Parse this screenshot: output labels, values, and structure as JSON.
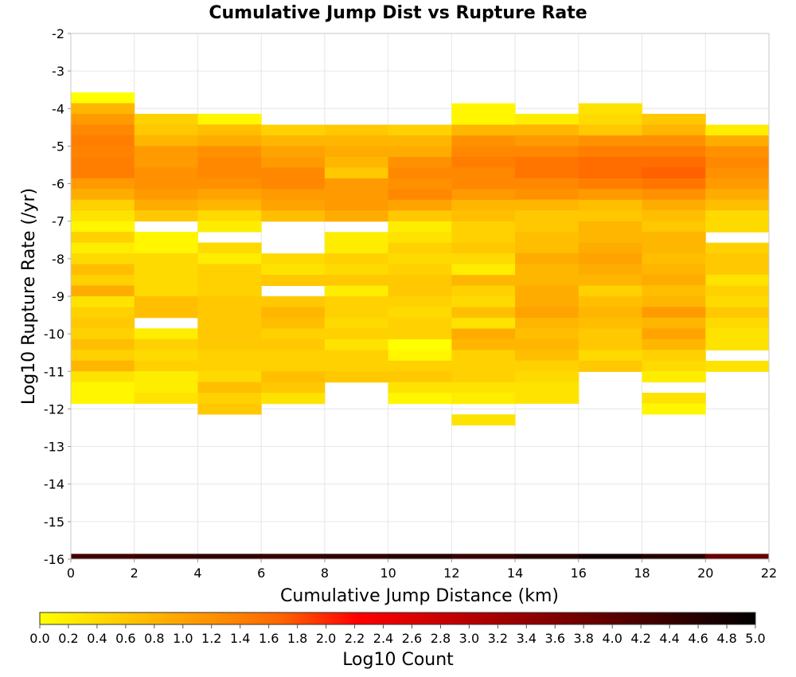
{
  "chart_data": {
    "type": "heatmap",
    "title": "Cumulative Jump Dist vs Rupture Rate",
    "xlabel": "Cumulative Jump Distance (km)",
    "ylabel": "Log10 Rupture Rate (/yr)",
    "xlim": [
      0,
      22
    ],
    "ylim": [
      -16,
      -2
    ],
    "x_ticks": [
      "0",
      "2",
      "4",
      "6",
      "8",
      "10",
      "12",
      "14",
      "16",
      "18",
      "20",
      "22"
    ],
    "y_ticks": [
      "-2",
      "-3",
      "-4",
      "-5",
      "-6",
      "-7",
      "-8",
      "-9",
      "-10",
      "-11",
      "-12",
      "-13",
      "-14",
      "-15",
      "-16"
    ],
    "grid": true,
    "x_bin_width": 2,
    "y_bin_height": 0.2857,
    "colorscale": {
      "label": "Log10 Count",
      "min": 0,
      "max": 5,
      "ticks": [
        "0.0",
        "0.2",
        "0.4",
        "0.6",
        "0.8",
        "1.0",
        "1.2",
        "1.4",
        "1.6",
        "1.8",
        "2.0",
        "2.2",
        "2.4",
        "2.6",
        "2.8",
        "3.0",
        "3.2",
        "3.4",
        "3.6",
        "3.8",
        "4.0",
        "4.2",
        "4.4",
        "4.6",
        "4.8",
        "5.0"
      ],
      "stops": [
        "#ffff00",
        "#ffcc00",
        "#ff9900",
        "#ff6600",
        "#ff0000",
        "#cc0000",
        "#990000",
        "#660000",
        "#330000",
        "#000000"
      ]
    },
    "columns": [
      {
        "x": 0,
        "y_top": -3.57,
        "values": [
          0.0,
          0.8,
          1.1,
          1.3,
          1.4,
          1.35,
          1.4,
          1.4,
          1.1,
          0.9,
          0.5,
          0.3,
          0.1,
          0.5,
          0.2,
          0.4,
          0.7,
          0.5,
          0.9,
          0.3,
          0.5,
          0.6,
          0.5,
          0.7,
          0.5,
          0.8,
          0.3,
          0.1,
          0.1
        ]
      },
      {
        "x": 2,
        "y_top": -4.14,
        "values": [
          0.5,
          0.6,
          0.8,
          1.1,
          1.1,
          1.2,
          1.2,
          1.1,
          0.9,
          0.6,
          null,
          0.1,
          0.1,
          0.4,
          0.4,
          0.4,
          0.4,
          0.7,
          0.7,
          null,
          0.2,
          0.5,
          0.4,
          0.5,
          0.2,
          0.2,
          0.3
        ]
      },
      {
        "x": 4,
        "y_top": -4.14,
        "values": [
          0.1,
          0.7,
          0.9,
          1.2,
          1.3,
          1.3,
          1.2,
          1.0,
          0.8,
          0.4,
          0.2,
          null,
          0.4,
          0.2,
          0.5,
          0.5,
          0.5,
          0.6,
          0.6,
          0.6,
          0.6,
          0.6,
          0.5,
          0.5,
          0.4,
          0.7,
          0.5,
          0.6
        ]
      },
      {
        "x": 6,
        "y_top": -4.43,
        "values": [
          0.5,
          0.8,
          1.0,
          1.1,
          1.3,
          1.3,
          1.1,
          1.0,
          0.7,
          null,
          null,
          null,
          0.4,
          0.3,
          0.6,
          null,
          0.6,
          0.8,
          0.7,
          0.5,
          0.6,
          0.5,
          0.5,
          0.7,
          0.6,
          0.3
        ]
      },
      {
        "x": 8,
        "y_top": -4.43,
        "values": [
          0.6,
          0.8,
          0.9,
          0.8,
          0.6,
          1.1,
          1.1,
          1.1,
          0.9,
          null,
          0.2,
          0.2,
          0.5,
          0.4,
          0.6,
          0.2,
          0.5,
          0.5,
          0.4,
          0.5,
          0.3,
          0.5,
          0.5,
          0.6
        ]
      },
      {
        "x": 10,
        "y_top": -4.43,
        "values": [
          0.5,
          0.8,
          0.9,
          1.2,
          1.3,
          1.2,
          1.3,
          1.0,
          0.6,
          0.2,
          0.3,
          0.5,
          0.4,
          0.5,
          0.6,
          0.6,
          0.5,
          0.4,
          0.5,
          0.5,
          0.0,
          0.1,
          0.5,
          0.6,
          0.3,
          0.1
        ]
      },
      {
        "x": 12,
        "y_top": -3.86,
        "values": [
          0.1,
          0.1,
          0.8,
          1.2,
          1.3,
          1.4,
          1.3,
          1.3,
          1.1,
          0.8,
          0.7,
          0.5,
          0.5,
          0.6,
          0.4,
          0.2,
          0.8,
          0.5,
          0.4,
          0.7,
          0.3,
          0.9,
          0.8,
          0.5,
          0.5,
          0.5,
          0.3,
          0.2,
          null,
          0.3
        ]
      },
      {
        "x": 14,
        "y_top": -4.14,
        "values": [
          0.2,
          0.8,
          1.1,
          1.3,
          1.5,
          1.5,
          1.3,
          1.2,
          0.8,
          0.6,
          0.6,
          0.7,
          0.7,
          0.9,
          0.8,
          0.8,
          0.9,
          0.9,
          1.0,
          0.8,
          0.7,
          0.8,
          0.7,
          0.5,
          0.4,
          0.3,
          0.3
        ]
      },
      {
        "x": 16,
        "y_top": -3.86,
        "values": [
          0.3,
          0.4,
          0.6,
          1.2,
          1.4,
          1.6,
          1.6,
          1.4,
          1.1,
          0.7,
          0.6,
          0.8,
          0.8,
          0.9,
          1.0,
          0.9,
          0.8,
          0.5,
          0.7,
          0.8,
          0.7,
          0.6,
          0.6,
          0.4,
          0.6
        ]
      },
      {
        "x": 18,
        "y_top": -4.14,
        "values": [
          0.6,
          0.8,
          1.2,
          1.4,
          1.6,
          1.7,
          1.5,
          1.2,
          0.9,
          0.7,
          0.6,
          0.8,
          0.8,
          0.7,
          0.8,
          0.9,
          0.7,
          0.8,
          1.1,
          0.8,
          1.0,
          0.8,
          0.5,
          0.4,
          0.2,
          null,
          0.3,
          0.1
        ]
      },
      {
        "x": 20,
        "y_top": -4.43,
        "values": [
          0.2,
          0.9,
          1.2,
          1.3,
          1.2,
          1.1,
          0.9,
          0.7,
          0.4,
          0.4,
          null,
          0.5,
          0.6,
          0.6,
          0.3,
          0.5,
          0.4,
          0.6,
          0.4,
          0.3,
          0.3,
          null,
          0.3
        ]
      }
    ],
    "bottom_row": {
      "y_top": -15.86,
      "y_bottom": -16.0,
      "values": [
        4.3,
        4.4,
        4.5,
        4.4,
        4.5,
        4.6,
        4.4,
        4.6,
        4.8,
        4.6,
        3.9
      ]
    }
  }
}
